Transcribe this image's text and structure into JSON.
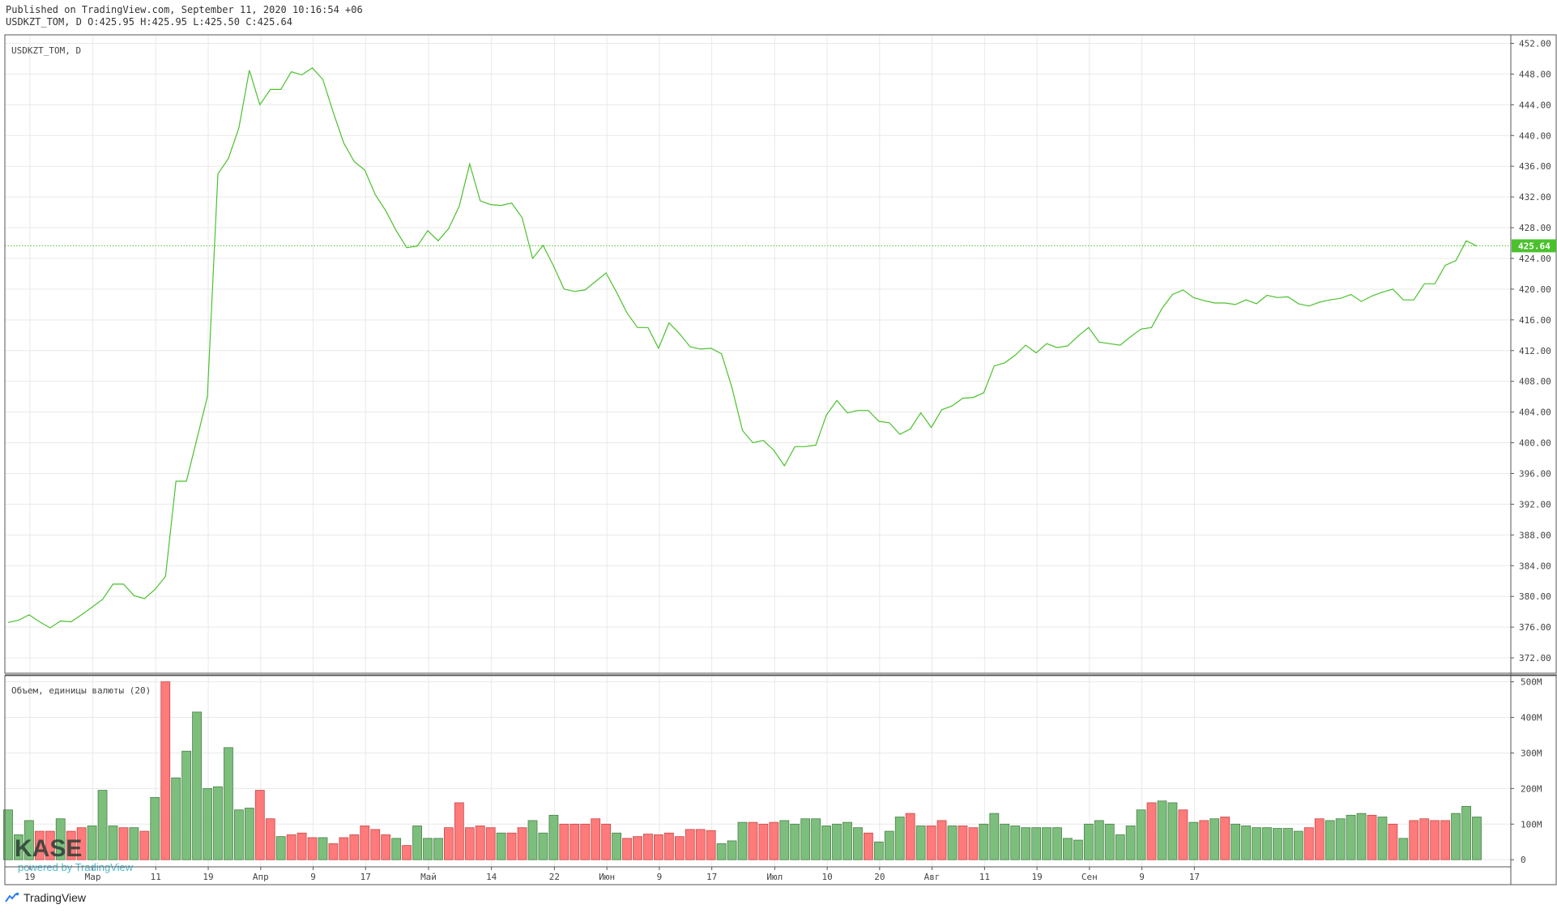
{
  "header": {
    "published": "Published on TradingView.com, September 11, 2020 10:16:54 +06",
    "ohlc": "USDKZT_TOM, D O:425.95 H:425.95 L:425.50 C:425.64"
  },
  "footer": {
    "brand": "TradingView",
    "icon": "tradingview-logo-icon"
  },
  "watermark": {
    "logo": "KASE",
    "powered": "powered by TradingView"
  },
  "colors": {
    "line": "#4bc12d",
    "up": "#7cbf7c",
    "up_border": "#4a7f4a",
    "down": "#ff7a7a",
    "down_border": "#c54848",
    "grid": "#e9e9e9",
    "axis": "#555555",
    "price_tag": "#4bc12d"
  },
  "chart_data": [
    {
      "type": "line",
      "title": "USDKZT_TOM, D",
      "ylim": [
        370,
        453
      ],
      "y_ticks": [
        "452.00",
        "448.00",
        "444.00",
        "440.00",
        "436.00",
        "432.00",
        "428.00",
        "424.00",
        "420.00",
        "416.00",
        "412.00",
        "408.00",
        "404.00",
        "400.00",
        "396.00",
        "392.00",
        "388.00",
        "384.00",
        "380.00",
        "376.00",
        "372.00"
      ],
      "last_price": 425.64,
      "last_price_label": "425.64",
      "x_ticks": [
        "19",
        "Мар",
        "11",
        "19",
        "Апр",
        "9",
        "17",
        "Май",
        "14",
        "22",
        "Июн",
        "9",
        "17",
        "Июл",
        "10",
        "20",
        "Авг",
        "11",
        "19",
        "Сен",
        "9",
        "17"
      ],
      "values": [
        376.6,
        376.9,
        377.6,
        376.7,
        375.9,
        376.8,
        376.7,
        377.6,
        378.6,
        379.6,
        381.6,
        381.6,
        380.1,
        379.7,
        380.9,
        382.6,
        395.0,
        395.0,
        400.5,
        406.0,
        435.0,
        437.0,
        441.0,
        448.5,
        444.0,
        446.0,
        446.0,
        448.3,
        447.9,
        448.8,
        447.3,
        443.0,
        439.0,
        436.6,
        435.5,
        432.3,
        430.2,
        427.6,
        425.4,
        425.6,
        427.6,
        426.3,
        427.9,
        430.8,
        436.3,
        431.5,
        431.0,
        430.9,
        431.2,
        429.3,
        424.0,
        425.7,
        423.0,
        420.0,
        419.7,
        419.9,
        421.0,
        422.1,
        419.6,
        416.9,
        415.0,
        415.0,
        412.3,
        415.6,
        414.2,
        412.5,
        412.2,
        412.3,
        411.6,
        407.2,
        401.6,
        400.0,
        400.3,
        399.0,
        397.0,
        399.5,
        399.5,
        399.7,
        403.6,
        405.5,
        403.9,
        404.2,
        404.2,
        402.8,
        402.6,
        401.1,
        401.8,
        403.9,
        402.0,
        404.3,
        404.8,
        405.8,
        405.9,
        406.5,
        410.0,
        410.4,
        411.4,
        412.7,
        411.7,
        412.9,
        412.4,
        412.6,
        413.9,
        415.0,
        413.1,
        412.9,
        412.7,
        413.8,
        414.8,
        415.0,
        417.5,
        419.3,
        419.9,
        418.9,
        418.5,
        418.2,
        418.2,
        418.0,
        418.6,
        418.1,
        419.2,
        418.9,
        419.0,
        418.1,
        417.8,
        418.3,
        418.6,
        418.8,
        419.3,
        418.4,
        419.1,
        419.6,
        420.0,
        418.6,
        418.6,
        420.7,
        420.7,
        423.1,
        423.7,
        426.3,
        425.6
      ]
    },
    {
      "type": "bar",
      "title": "Объем, единицы валюты (20)",
      "ylim": [
        -20,
        515
      ],
      "y_ticks": [
        "500M",
        "400M",
        "300M",
        "200M",
        "100M",
        "0"
      ],
      "values": [
        140,
        70,
        110,
        80,
        80,
        115,
        80,
        90,
        95,
        195,
        95,
        90,
        90,
        80,
        175,
        500,
        230,
        305,
        415,
        200,
        205,
        315,
        140,
        145,
        195,
        115,
        65,
        70,
        75,
        62,
        62,
        45,
        62,
        70,
        95,
        85,
        70,
        60,
        40,
        95,
        60,
        60,
        90,
        160,
        90,
        95,
        90,
        75,
        75,
        90,
        110,
        75,
        125,
        100,
        100,
        100,
        115,
        100,
        75,
        60,
        65,
        72,
        70,
        75,
        65,
        85,
        85,
        82,
        45,
        53,
        105,
        105,
        100,
        105,
        110,
        100,
        115,
        115,
        95,
        100,
        105,
        90,
        75,
        50,
        80,
        120,
        130,
        95,
        95,
        110,
        95,
        95,
        90,
        100,
        130,
        100,
        95,
        90,
        90,
        90,
        90,
        60,
        55,
        100,
        110,
        100,
        70,
        95,
        140,
        160,
        165,
        160,
        140,
        105,
        110,
        115,
        120,
        100,
        95,
        90,
        90,
        88,
        88,
        80,
        90,
        115,
        110,
        115,
        125,
        130,
        125,
        120,
        100,
        60,
        110,
        115,
        110,
        110,
        130,
        150,
        120
      ],
      "direction": "uuuddudduuudududuuuuuuuuddudddudddddduduuudddddudduuuddddduddddddddduuuddduuuuuuuuduuududdudduuuuuuuuuuuuuuuuduudududuuuuuuudduuuudududddduuuuuuudduuuuud"
    }
  ]
}
